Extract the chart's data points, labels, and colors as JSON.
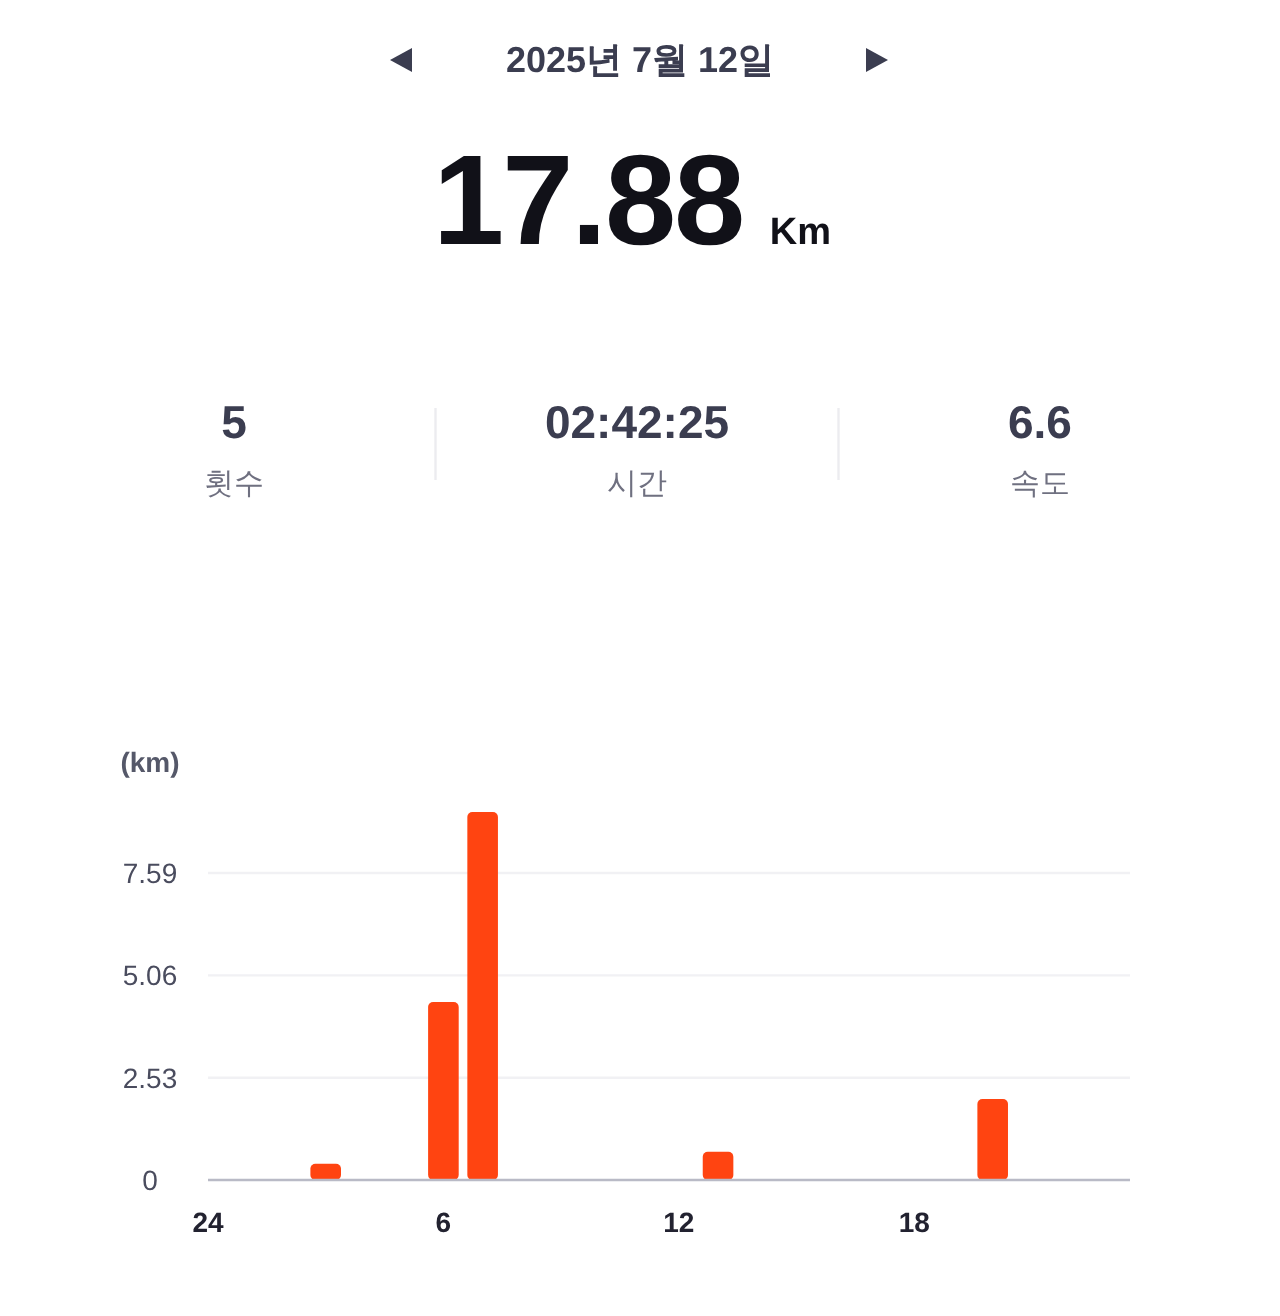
{
  "chart_data": {
    "type": "bar",
    "title": "2025년 7월 12일",
    "subtitle": "17.88 Km",
    "annotations": [
      "5",
      "횟수",
      "02:42:25",
      "시간",
      "6.6",
      "속도"
    ],
    "ylabel": "(km)",
    "categories": [
      "24",
      null,
      null,
      null,
      null,
      null,
      "6",
      null,
      null,
      null,
      null,
      null,
      "12",
      null,
      null,
      null,
      null,
      null,
      "18",
      null,
      null,
      null,
      null,
      null
    ],
    "values": [
      null,
      null,
      null,
      0.4,
      null,
      null,
      4.4,
      9.1,
      null,
      null,
      null,
      null,
      null,
      0.7,
      null,
      null,
      null,
      null,
      null,
      null,
      2.0,
      null,
      null,
      null
    ],
    "color": "#ff4411",
    "ylim": [
      0,
      9.1
    ],
    "yticks": [
      0,
      2.53,
      5.06,
      7.59
    ],
    "grid": "y"
  }
}
